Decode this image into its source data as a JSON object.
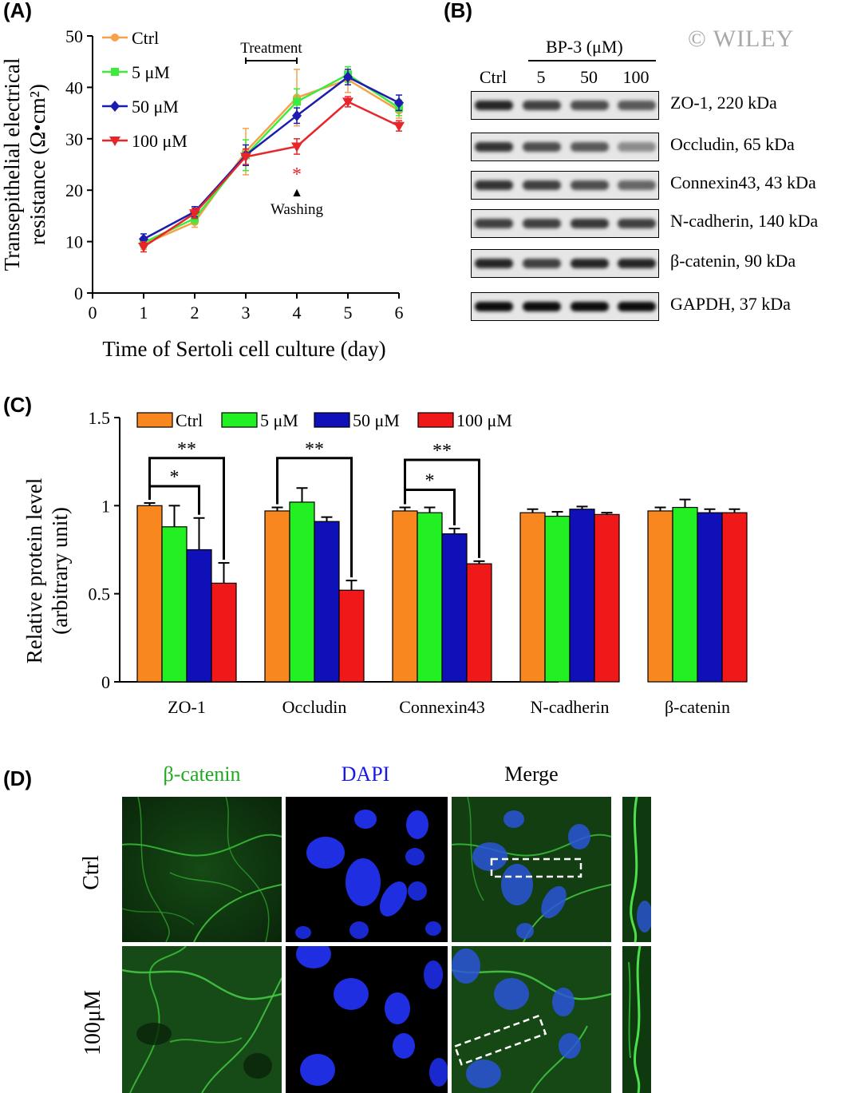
{
  "panels": {
    "A": "(A)",
    "B": "(B)",
    "C": "(C)",
    "D": "(D)"
  },
  "watermark": "© WILEY",
  "colors": {
    "ctrl": "#F7A04A",
    "um5": "#3CEB3C",
    "um50": "#1C1CB0",
    "um100": "#E8262A",
    "bar_ctrl": "#F7871E",
    "bar_5": "#22F022",
    "bar_50": "#1010B8",
    "bar_100": "#F01818"
  },
  "chart_data": [
    {
      "type": "line",
      "xlabel": "Time of Sertoli cell culture (day)",
      "ylabel_line1": "Transepithelial electrical",
      "ylabel_line2": "resistance (Ω•cm²)",
      "xlim": [
        0,
        6
      ],
      "ylim": [
        0,
        50
      ],
      "x_ticks": [
        "0",
        "1",
        "2",
        "3",
        "4",
        "5",
        "6"
      ],
      "y_ticks": [
        "0",
        "10",
        "20",
        "30",
        "40",
        "50"
      ],
      "x": [
        1,
        2,
        3,
        4,
        5,
        6
      ],
      "series": [
        {
          "name": "Ctrl",
          "values": [
            9.5,
            13.8,
            27.5,
            38.0,
            41.5,
            35.5
          ],
          "err": [
            1.0,
            1.0,
            4.5,
            5.5,
            2.5,
            1.5
          ],
          "marker": "circle",
          "color": "#F7A04A"
        },
        {
          "name": "5 μM",
          "values": [
            9.8,
            14.5,
            26.8,
            37.2,
            42.5,
            36.0
          ],
          "err": [
            1.0,
            1.0,
            3.0,
            2.5,
            1.5,
            1.5
          ],
          "marker": "square",
          "color": "#3CEB3C"
        },
        {
          "name": "50 μM",
          "values": [
            10.5,
            15.8,
            26.8,
            34.5,
            42.0,
            37.0
          ],
          "err": [
            1.0,
            1.0,
            2.0,
            1.5,
            1.5,
            1.5
          ],
          "marker": "diamond",
          "color": "#1C1CB0"
        },
        {
          "name": "100 μM",
          "values": [
            9.0,
            15.5,
            26.5,
            28.5,
            37.2,
            32.5
          ],
          "err": [
            1.0,
            1.0,
            1.5,
            1.5,
            1.0,
            1.0
          ],
          "marker": "triangle-down",
          "color": "#E8262A"
        }
      ],
      "annotations": {
        "treatment": "Treatment",
        "washing": "Washing",
        "washing_marker": "▲",
        "significance": "*"
      }
    },
    {
      "type": "bar",
      "ylabel_line1": "Relative protein level",
      "ylabel_line2": "(arbitrary unit)",
      "ylim": [
        0,
        1.5
      ],
      "y_ticks": [
        "0",
        "0.5",
        "1",
        "1.5"
      ],
      "categories": [
        "ZO-1",
        "Occludin",
        "Connexin43",
        "N-cadherin",
        "β-catenin"
      ],
      "series": [
        {
          "name": "Ctrl",
          "values": [
            1.0,
            0.97,
            0.97,
            0.96,
            0.97
          ],
          "err": [
            0.015,
            0.02,
            0.02,
            0.02,
            0.02
          ],
          "color": "#F7871E"
        },
        {
          "name": "5 μM",
          "values": [
            0.88,
            1.02,
            0.96,
            0.94,
            0.99
          ],
          "err": [
            0.12,
            0.08,
            0.03,
            0.025,
            0.045
          ],
          "color": "#22F022"
        },
        {
          "name": "50 μM",
          "values": [
            0.75,
            0.91,
            0.84,
            0.98,
            0.96
          ],
          "err": [
            0.18,
            0.025,
            0.03,
            0.015,
            0.02
          ],
          "color": "#1010B8"
        },
        {
          "name": "100 μM",
          "values": [
            0.56,
            0.52,
            0.67,
            0.95,
            0.96
          ],
          "err": [
            0.115,
            0.055,
            0.015,
            0.01,
            0.02
          ],
          "color": "#F01818"
        }
      ],
      "significance": [
        {
          "category": "ZO-1",
          "label": "**"
        },
        {
          "category": "ZO-1",
          "label": "*"
        },
        {
          "category": "Occludin",
          "label": "**"
        },
        {
          "category": "Connexin43",
          "label": "**"
        },
        {
          "category": "Connexin43",
          "label": "*"
        }
      ]
    }
  ],
  "blot": {
    "header": "BP-3 (μM)",
    "lanes": [
      "Ctrl",
      "5",
      "50",
      "100"
    ],
    "bands": [
      {
        "label": "ZO-1, 220 kDa",
        "intensity": [
          0.85,
          0.75,
          0.7,
          0.65
        ]
      },
      {
        "label": "Occludin, 65 kDa",
        "intensity": [
          0.8,
          0.7,
          0.65,
          0.45
        ]
      },
      {
        "label": "Connexin43, 43 kDa",
        "intensity": [
          0.8,
          0.75,
          0.7,
          0.6
        ]
      },
      {
        "label": "N-cadherin, 140 kDa",
        "intensity": [
          0.75,
          0.75,
          0.78,
          0.75
        ]
      },
      {
        "label": "β-catenin, 90 kDa",
        "intensity": [
          0.85,
          0.75,
          0.85,
          0.85
        ]
      },
      {
        "label": "GAPDH, 37 kDa",
        "intensity": [
          0.95,
          0.95,
          0.95,
          0.95
        ]
      }
    ]
  },
  "microscopy": {
    "columns": [
      "β-catenin",
      "DAPI",
      "Merge"
    ],
    "rows": [
      "Ctrl",
      "100μM"
    ],
    "column_colors": [
      "#22A822",
      "#1818E8",
      "#000000"
    ]
  }
}
